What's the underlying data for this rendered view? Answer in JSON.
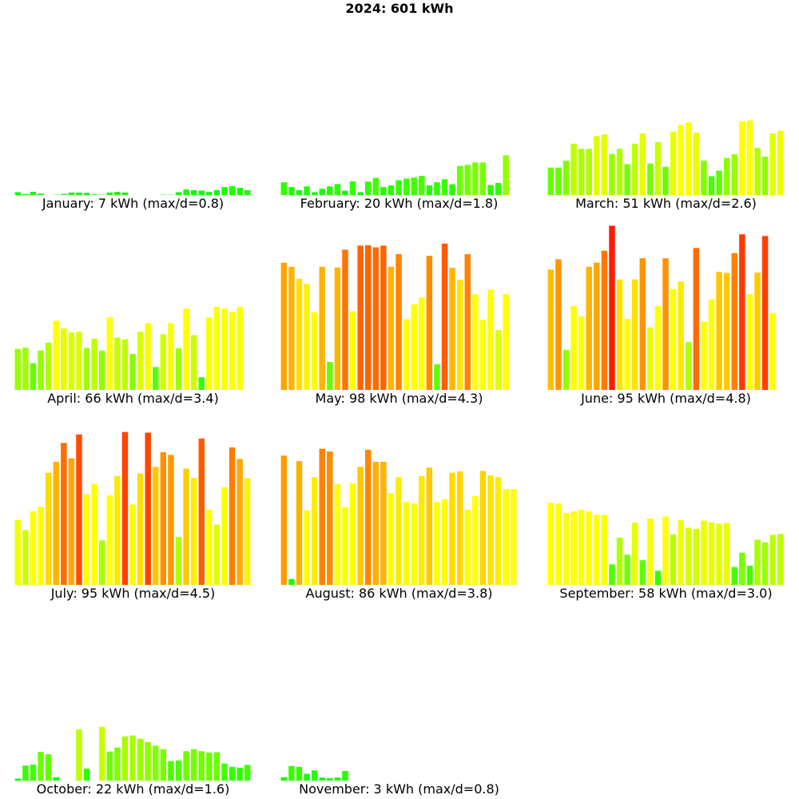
{
  "title": "2024: 601 kWh",
  "chart_data": [
    {
      "type": "bar",
      "label": "January: 7 kWh (max/d=0.8)",
      "ymax": 0.8,
      "values": [
        0.08,
        0.03,
        0.09,
        0.04,
        0.0,
        0.01,
        0.03,
        0.07,
        0.07,
        0.06,
        0.02,
        0.01,
        0.07,
        0.09,
        0.07,
        0.0,
        0.0,
        0.0,
        0.0,
        0.01,
        0.01,
        0.08,
        0.16,
        0.14,
        0.13,
        0.09,
        0.14,
        0.23,
        0.26,
        0.21,
        0.14
      ]
    },
    {
      "type": "bar",
      "label": "February: 20 kWh (max/d=1.8)",
      "ymax": 1.8,
      "values": [
        0.37,
        0.23,
        0.14,
        0.25,
        0.08,
        0.18,
        0.25,
        0.32,
        0.12,
        0.4,
        0.08,
        0.39,
        0.5,
        0.23,
        0.28,
        0.43,
        0.48,
        0.51,
        0.56,
        0.28,
        0.37,
        0.46,
        0.31,
        0.85,
        0.88,
        0.95,
        0.95,
        0.29,
        0.35,
        1.16
      ]
    },
    {
      "type": "bar",
      "label": "March: 51 kWh (max/d=2.6)",
      "ymax": 2.6,
      "values": [
        0.8,
        0.8,
        1.0,
        1.5,
        1.35,
        1.35,
        1.72,
        1.77,
        1.2,
        1.35,
        0.9,
        1.5,
        1.8,
        0.92,
        1.55,
        0.82,
        1.85,
        2.05,
        2.12,
        1.82,
        1.0,
        0.55,
        0.71,
        1.08,
        1.19,
        2.15,
        2.18,
        1.38,
        1.12,
        1.8,
        1.88
      ]
    },
    {
      "type": "bar",
      "label": "April: 66 kWh (max/d=3.4)",
      "ymax": 3.4,
      "values": [
        1.2,
        1.23,
        0.78,
        1.15,
        1.38,
        2.02,
        1.8,
        1.68,
        1.7,
        1.23,
        1.5,
        1.15,
        2.12,
        1.53,
        1.48,
        1.05,
        1.7,
        1.95,
        0.67,
        1.63,
        1.95,
        1.22,
        2.38,
        1.6,
        0.37,
        2.12,
        2.43,
        2.38,
        2.27,
        2.42
      ]
    },
    {
      "type": "bar",
      "label": "May: 98 kWh (max/d=4.3)",
      "ymax": 4.3,
      "values": [
        3.72,
        3.6,
        3.25,
        3.1,
        2.27,
        3.6,
        0.82,
        3.58,
        4.1,
        2.3,
        4.22,
        4.23,
        4.17,
        4.22,
        3.6,
        3.97,
        2.07,
        2.5,
        2.7,
        3.92,
        0.75,
        4.28,
        3.57,
        3.22,
        3.97,
        2.8,
        2.05,
        2.93,
        1.75,
        2.8
      ]
    },
    {
      "type": "bar",
      "label": "June: 95 kWh (max/d=4.8)",
      "ymax": 4.8,
      "values": [
        3.52,
        3.82,
        1.17,
        2.45,
        2.15,
        3.6,
        3.72,
        4.07,
        4.8,
        3.23,
        2.08,
        3.23,
        3.85,
        1.83,
        2.45,
        3.85,
        2.95,
        3.17,
        1.4,
        4.15,
        2.0,
        2.65,
        3.45,
        3.42,
        4.0,
        4.55,
        2.8,
        3.43,
        4.5,
        2.25
      ]
    },
    {
      "type": "bar",
      "label": "July: 95 kWh (max/d=4.5)",
      "ymax": 4.5,
      "values": [
        1.9,
        1.6,
        2.15,
        2.28,
        3.28,
        3.6,
        4.15,
        3.7,
        4.4,
        2.65,
        2.95,
        1.3,
        2.62,
        3.18,
        4.47,
        2.35,
        3.26,
        4.45,
        3.45,
        3.88,
        3.8,
        1.4,
        3.4,
        3.13,
        4.28,
        2.2,
        1.76,
        2.86,
        4.02,
        3.68,
        3.12
      ]
    },
    {
      "type": "bar",
      "label": "August: 86 kWh (max/d=3.8)",
      "ymax": 3.8,
      "values": [
        3.78,
        0.17,
        3.62,
        2.18,
        3.15,
        3.98,
        3.9,
        2.95,
        2.27,
        2.97,
        3.45,
        3.95,
        3.6,
        3.6,
        2.68,
        3.15,
        2.43,
        2.38,
        3.18,
        3.43,
        2.42,
        2.5,
        3.28,
        3.32,
        2.2,
        2.6,
        3.33,
        3.2,
        3.15,
        2.8,
        2.8
      ]
    },
    {
      "type": "bar",
      "label": "September: 58 kWh (max/d=3.0)",
      "ymax": 3.0,
      "values": [
        2.4,
        2.38,
        2.1,
        2.15,
        2.2,
        2.15,
        2.05,
        2.05,
        0.6,
        1.38,
        0.88,
        1.82,
        0.72,
        1.94,
        0.41,
        2.0,
        1.48,
        1.89,
        1.67,
        1.64,
        1.88,
        1.83,
        1.79,
        1.81,
        0.52,
        0.94,
        0.56,
        1.32,
        1.24,
        1.46,
        1.49
      ]
    },
    {
      "type": "bar",
      "label": "October: 22 kWh (max/d=1.6)",
      "ymax": 1.6,
      "values": [
        0.06,
        0.44,
        0.47,
        0.84,
        0.77,
        0.1,
        0.0,
        0.0,
        1.5,
        0.35,
        0.0,
        1.57,
        0.85,
        0.97,
        1.29,
        1.32,
        1.22,
        1.13,
        1.02,
        0.92,
        0.57,
        0.59,
        0.86,
        0.92,
        0.86,
        0.82,
        0.83,
        0.5,
        0.4,
        0.38,
        0.46
      ]
    },
    {
      "type": "bar",
      "label": "November: 3 kWh (max/d=0.8)",
      "ymax": 0.8,
      "values": [
        0.1,
        0.43,
        0.4,
        0.2,
        0.3,
        0.09,
        0.07,
        0.09,
        0.28
      ]
    }
  ]
}
